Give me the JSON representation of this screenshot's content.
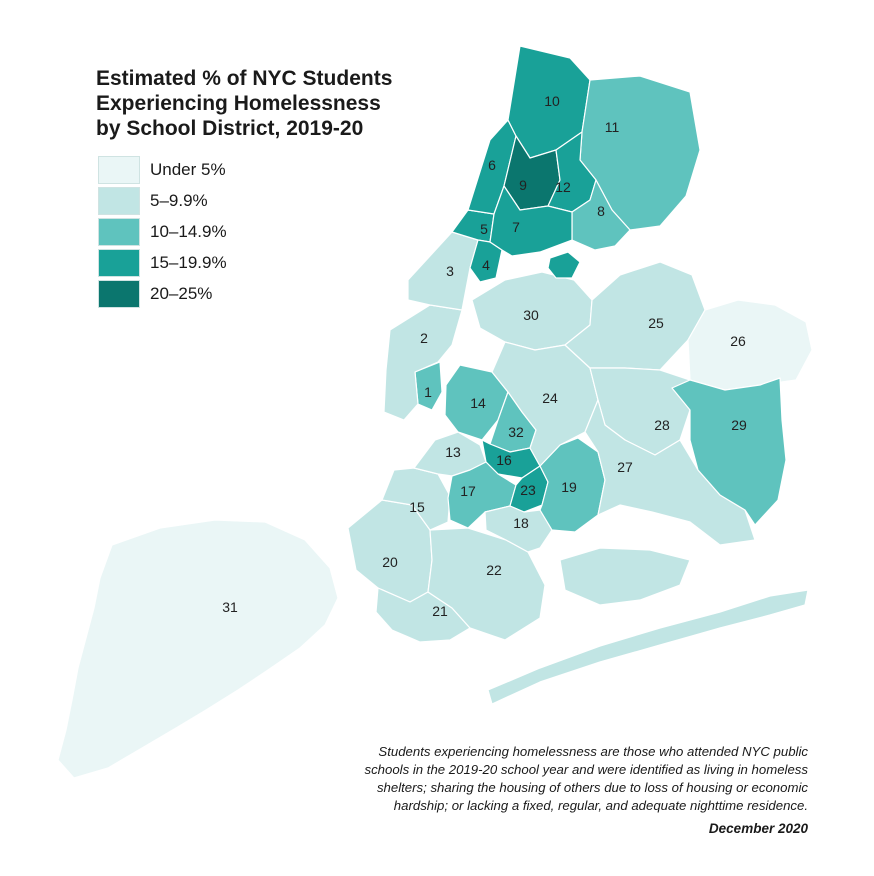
{
  "title_lines": [
    "Estimated % of NYC Students",
    "Experiencing Homelessness",
    "by School District, 2019-20"
  ],
  "legend": [
    {
      "label": "Under 5%",
      "color": "#eaf6f6"
    },
    {
      "label": "5–9.9%",
      "color": "#c1e5e4"
    },
    {
      "label": "10–14.9%",
      "color": "#5fc3be"
    },
    {
      "label": "15–19.9%",
      "color": "#19a198"
    },
    {
      "label": "20–25%",
      "color": "#0b766e"
    }
  ],
  "districts": [
    {
      "id": "1",
      "bin": 2
    },
    {
      "id": "2",
      "bin": 1
    },
    {
      "id": "3",
      "bin": 1
    },
    {
      "id": "4",
      "bin": 3
    },
    {
      "id": "5",
      "bin": 3
    },
    {
      "id": "6",
      "bin": 3
    },
    {
      "id": "7",
      "bin": 3
    },
    {
      "id": "8",
      "bin": 2
    },
    {
      "id": "9",
      "bin": 4
    },
    {
      "id": "10",
      "bin": 3
    },
    {
      "id": "11",
      "bin": 2
    },
    {
      "id": "12",
      "bin": 3
    },
    {
      "id": "13",
      "bin": 1
    },
    {
      "id": "14",
      "bin": 2
    },
    {
      "id": "15",
      "bin": 1
    },
    {
      "id": "16",
      "bin": 3
    },
    {
      "id": "17",
      "bin": 2
    },
    {
      "id": "18",
      "bin": 1
    },
    {
      "id": "19",
      "bin": 2
    },
    {
      "id": "20",
      "bin": 1
    },
    {
      "id": "21",
      "bin": 1
    },
    {
      "id": "22",
      "bin": 1
    },
    {
      "id": "23",
      "bin": 3
    },
    {
      "id": "24",
      "bin": 1
    },
    {
      "id": "25",
      "bin": 1
    },
    {
      "id": "26",
      "bin": 0
    },
    {
      "id": "27",
      "bin": 1
    },
    {
      "id": "28",
      "bin": 1
    },
    {
      "id": "29",
      "bin": 2
    },
    {
      "id": "30",
      "bin": 1
    },
    {
      "id": "31",
      "bin": 0
    },
    {
      "id": "32",
      "bin": 2
    }
  ],
  "note_lines": [
    "Students experiencing homelessness are those who attended NYC public",
    "schools in the 2019-20 school year and were identified as living in homeless",
    "shelters; sharing the housing of others due to loss of housing or economic",
    "hardship; or lacking a fixed, regular, and adequate nighttime residence."
  ],
  "date": "December 2020"
}
